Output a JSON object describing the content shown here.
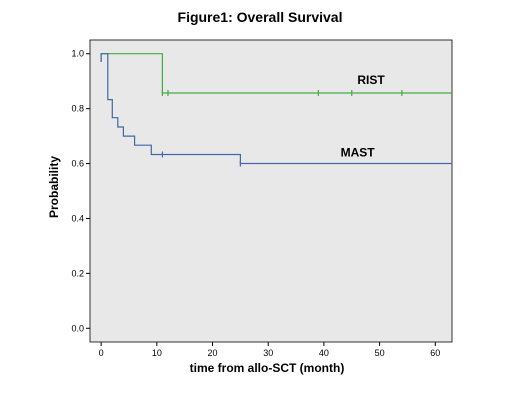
{
  "chart_data": {
    "type": "line",
    "title": "Figure1: Overall Survival",
    "xlabel": "time from allo-SCT (month)",
    "ylabel": "Probability",
    "xlim": [
      -2,
      63
    ],
    "ylim": [
      -0.05,
      1.05
    ],
    "x_ticks": [
      0,
      10,
      20,
      30,
      40,
      50,
      60
    ],
    "y_ticks": [
      "0.0",
      "0.2",
      "0.4",
      "0.6",
      "0.8",
      "1.0"
    ],
    "grid": false,
    "plot_background": "#e8e8e8",
    "series": [
      {
        "name": "RIST",
        "color": "#44aa44",
        "steps": [
          [
            0,
            0.97
          ],
          [
            0,
            1.0
          ],
          [
            11,
            1.0
          ],
          [
            11,
            0.857
          ],
          [
            63,
            0.857
          ]
        ],
        "censored": [
          [
            11,
            0.857
          ],
          [
            12,
            0.857
          ],
          [
            39,
            0.857
          ],
          [
            45,
            0.857
          ],
          [
            54,
            0.857
          ]
        ],
        "label_at": [
          46,
          0.89
        ]
      },
      {
        "name": "MAST",
        "color": "#4466aa",
        "steps": [
          [
            0,
            0.97
          ],
          [
            0,
            1.0
          ],
          [
            1.2,
            1.0
          ],
          [
            1.2,
            0.833
          ],
          [
            2,
            0.833
          ],
          [
            2,
            0.767
          ],
          [
            3,
            0.767
          ],
          [
            3,
            0.733
          ],
          [
            4,
            0.733
          ],
          [
            4,
            0.7
          ],
          [
            6,
            0.7
          ],
          [
            6,
            0.667
          ],
          [
            9,
            0.667
          ],
          [
            9,
            0.633
          ],
          [
            25,
            0.633
          ],
          [
            25,
            0.6
          ],
          [
            63,
            0.6
          ]
        ],
        "censored": [
          [
            11,
            0.633
          ],
          [
            25,
            0.6
          ]
        ],
        "label_at": [
          43,
          0.625
        ]
      }
    ]
  }
}
